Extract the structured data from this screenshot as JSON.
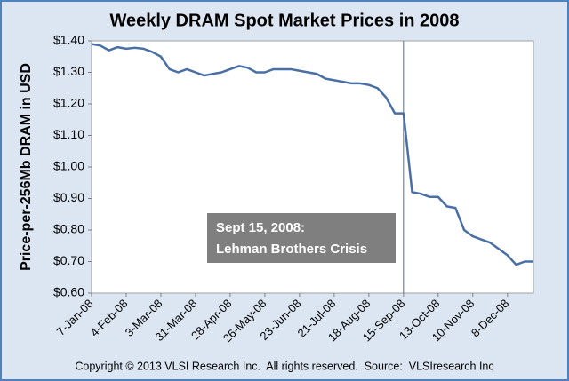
{
  "chart_data": {
    "type": "line",
    "title": "Weekly DRAM Spot Market Prices in 2008",
    "y_label": "Price-per-256Mb DRAM in USD",
    "categories": [
      "7-Jan-08",
      null,
      null,
      null,
      "4-Feb-08",
      null,
      null,
      null,
      "3-Mar-08",
      null,
      null,
      null,
      "31-Mar-08",
      null,
      null,
      null,
      "28-Apr-08",
      null,
      null,
      null,
      "26-May-08",
      null,
      null,
      null,
      "23-Jun-08",
      null,
      null,
      null,
      "21-Jul-08",
      null,
      null,
      null,
      "18-Aug-08",
      null,
      null,
      null,
      "15-Sep-08",
      null,
      null,
      null,
      "13-Oct-08",
      null,
      null,
      null,
      "10-Nov-08",
      null,
      null,
      null,
      "8-Dec-08",
      null,
      null,
      null
    ],
    "values": [
      1.39,
      1.385,
      1.37,
      1.38,
      1.375,
      1.378,
      1.375,
      1.365,
      1.35,
      1.31,
      1.3,
      1.31,
      1.3,
      1.29,
      1.295,
      1.3,
      1.31,
      1.32,
      1.315,
      1.3,
      1.3,
      1.31,
      1.31,
      1.31,
      1.305,
      1.3,
      1.295,
      1.28,
      1.275,
      1.27,
      1.265,
      1.265,
      1.26,
      1.25,
      1.22,
      1.17,
      1.17,
      0.92,
      0.915,
      0.905,
      0.905,
      0.875,
      0.87,
      0.8,
      0.78,
      0.77,
      0.76,
      0.74,
      0.72,
      0.69,
      0.7,
      0.7
    ],
    "color": "#4a6fa5",
    "ylim": [
      0.6,
      1.4
    ],
    "yticks": [
      {
        "value": 0.6,
        "label": "$0.60"
      },
      {
        "value": 0.7,
        "label": "$0.70"
      },
      {
        "value": 0.8,
        "label": "$0.80"
      },
      {
        "value": 0.9,
        "label": "$0.90"
      },
      {
        "value": 1.0,
        "label": "$1.00"
      },
      {
        "value": 1.1,
        "label": "$1.10"
      },
      {
        "value": 1.2,
        "label": "$1.20"
      },
      {
        "value": 1.3,
        "label": "$1.30"
      },
      {
        "value": 1.4,
        "label": "$1.40"
      }
    ],
    "grid": false,
    "annotation": {
      "x": "15-Sep-08",
      "lines": [
        "Sept 15, 2008:",
        "Lehman Brothers Crisis"
      ]
    },
    "footer": "Copyright © 2013 VLSI Research Inc.  All rights reserved.  Source:  VLSIresearch Inc"
  }
}
